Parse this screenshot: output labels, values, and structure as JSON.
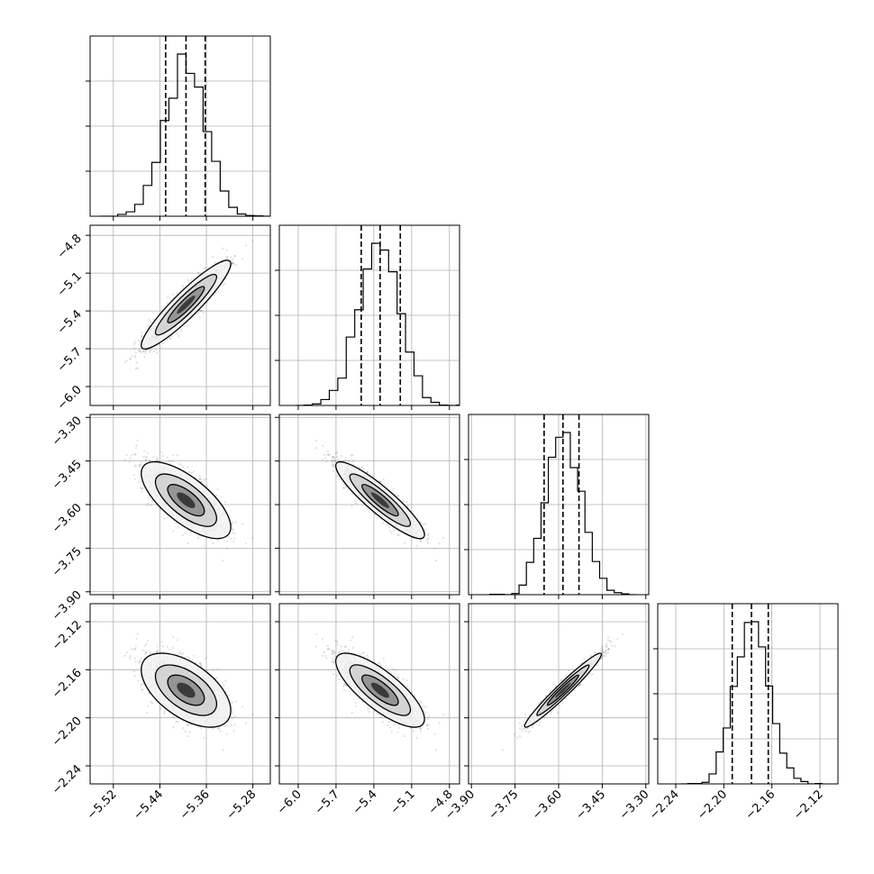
{
  "chart_data": {
    "type": "corner",
    "n_params": 4,
    "colors": {
      "hist": "#000000",
      "grid": "#b0b0b0",
      "scatter": "#000000"
    },
    "quantile_lines": "dashed",
    "grid": true,
    "params": [
      {
        "range": [
          -5.56,
          -5.25
        ],
        "ticks": [
          -5.52,
          -5.44,
          -5.36,
          -5.28
        ],
        "tick_labels": [
          "−5.52",
          "−5.44",
          "−5.36",
          "−5.28"
        ],
        "quantiles": [
          -5.43,
          -5.395,
          -5.362
        ],
        "mean": -5.395,
        "sd": 0.035
      },
      {
        "range": [
          -6.15,
          -4.72
        ],
        "ticks": [
          -6.0,
          -5.7,
          -5.4,
          -5.1,
          -4.8
        ],
        "tick_labels": [
          "−6.0",
          "−5.7",
          "−5.4",
          "−5.1",
          "−4.8"
        ],
        "quantiles": [
          -5.5,
          -5.35,
          -5.19
        ],
        "mean": -5.35,
        "sd": 0.16
      },
      {
        "range": [
          -3.91,
          -3.29
        ],
        "ticks": [
          -3.9,
          -3.75,
          -3.6,
          -3.45,
          -3.3
        ],
        "tick_labels": [
          "−3.90",
          "−3.75",
          "−3.60",
          "−3.45",
          "−3.30"
        ],
        "quantiles": [
          -3.65,
          -3.585,
          -3.53
        ],
        "mean": -3.585,
        "sd": 0.06
      },
      {
        "range": [
          -2.255,
          -2.105
        ],
        "ticks": [
          -2.24,
          -2.2,
          -2.16,
          -2.12
        ],
        "tick_labels": [
          "−2.24",
          "−2.20",
          "−2.16",
          "−2.12"
        ],
        "quantiles": [
          -2.193,
          -2.177,
          -2.163
        ],
        "mean": -2.177,
        "sd": 0.014
      }
    ],
    "correlations": {
      "1-0": 0.92,
      "2-0": -0.7,
      "2-1": -0.9,
      "3-0": -0.55,
      "3-1": -0.78,
      "3-2": 0.97
    }
  }
}
